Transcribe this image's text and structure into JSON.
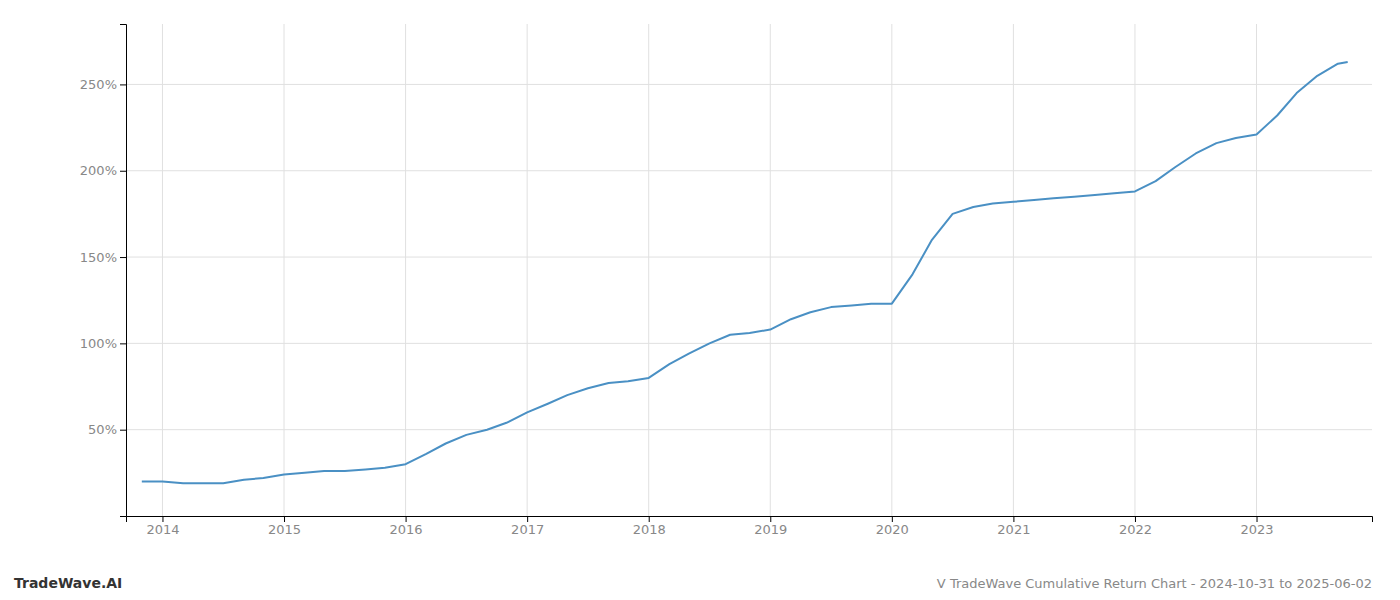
{
  "chart_data": {
    "type": "line",
    "title": "V TradeWave Cumulative Return Chart - 2024-10-31 to 2025-06-02",
    "annotations": [
      "TradeWave.AI"
    ],
    "color": "#4a90c4",
    "grid": true,
    "x": [
      2013.83,
      2014.0,
      2014.17,
      2014.33,
      2014.5,
      2014.67,
      2014.83,
      2015.0,
      2015.17,
      2015.33,
      2015.5,
      2015.67,
      2015.83,
      2016.0,
      2016.17,
      2016.33,
      2016.5,
      2016.67,
      2016.83,
      2017.0,
      2017.17,
      2017.33,
      2017.5,
      2017.67,
      2017.83,
      2018.0,
      2018.17,
      2018.33,
      2018.5,
      2018.67,
      2018.83,
      2019.0,
      2019.17,
      2019.33,
      2019.5,
      2019.67,
      2019.83,
      2020.0,
      2020.17,
      2020.33,
      2020.5,
      2020.67,
      2020.83,
      2021.0,
      2021.17,
      2021.33,
      2021.5,
      2021.67,
      2021.83,
      2022.0,
      2022.17,
      2022.33,
      2022.5,
      2022.67,
      2022.83,
      2023.0,
      2023.17,
      2023.33,
      2023.5,
      2023.67,
      2023.75
    ],
    "values": [
      20,
      20,
      19,
      19,
      19,
      21,
      22,
      24,
      25,
      26,
      26,
      27,
      28,
      30,
      36,
      42,
      47,
      50,
      54,
      60,
      65,
      70,
      74,
      77,
      78,
      80,
      88,
      94,
      100,
      105,
      106,
      108,
      114,
      118,
      121,
      122,
      123,
      123,
      140,
      160,
      175,
      179,
      181,
      182,
      183,
      184,
      185,
      186,
      187,
      188,
      194,
      202,
      210,
      216,
      219,
      221,
      232,
      245,
      255,
      262,
      263
    ],
    "xlim": [
      2013.7,
      2023.95
    ],
    "xticks": [
      2014,
      2015,
      2016,
      2017,
      2018,
      2019,
      2020,
      2021,
      2022,
      2023
    ],
    "ylim": [
      0,
      285
    ],
    "yticks": [
      {
        "value": 50,
        "label": "50%"
      },
      {
        "value": 100,
        "label": "100%"
      },
      {
        "value": 150,
        "label": "150%"
      },
      {
        "value": 200,
        "label": "200%"
      },
      {
        "value": 250,
        "label": "250%"
      }
    ]
  }
}
